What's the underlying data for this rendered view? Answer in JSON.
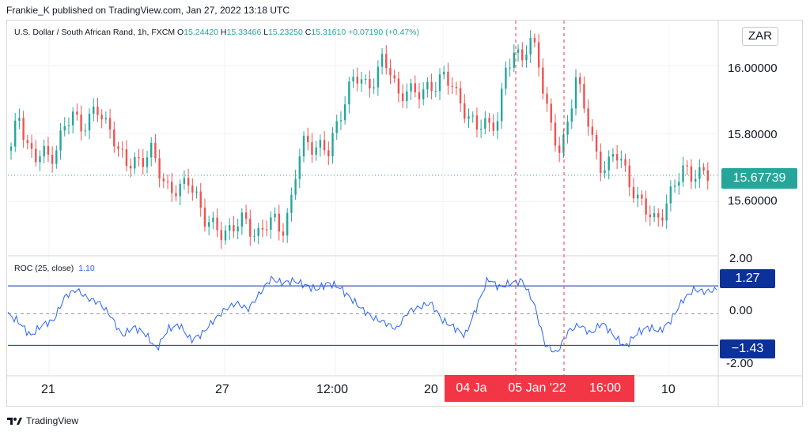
{
  "header": {
    "published": "Frankie_K published on TradingView.com, Jan 27, 2022 13:18 UTC"
  },
  "symbol": {
    "name": "U.S. Dollar / South African Rand, 1h, FXCM",
    "open_label": "O",
    "open": "15.24420",
    "high_label": "H",
    "high": "15.33466",
    "low_label": "L",
    "low": "15.23250",
    "close_label": "C",
    "close": "15.31610",
    "change": "+0.07190 (+0.47%)"
  },
  "currency_button": "ZAR",
  "price_axis": {
    "labels": [
      "16.00000",
      "15.80000",
      "15.60000"
    ],
    "current_price": "15.67739"
  },
  "roc": {
    "legend": "ROC (25, close)",
    "value": "1.10",
    "axis_labels": [
      "2.00",
      "0.00",
      "-2.00"
    ],
    "upper_level": "1.27",
    "lower_level": "−1.43"
  },
  "time_axis": {
    "labels": [
      "21",
      "27",
      "12:00",
      "20",
      "10"
    ]
  },
  "crosshair_labels": [
    "04 Ja",
    "05 Jan '22",
    "16:00"
  ],
  "footer": {
    "brand": "TradingView"
  },
  "colors": {
    "up": "#26a69a",
    "down": "#ef5350",
    "roc_line": "#2962ff",
    "level_line": "#0c3299",
    "crosshair": "#f23645"
  },
  "chart_data": [
    {
      "type": "candlestick",
      "title": "U.S. Dollar / South African Rand, 1h, FXCM",
      "ylim": [
        15.45,
        16.1
      ],
      "y_ticks": [
        16.0,
        15.8,
        15.6
      ],
      "close_path": [
        15.75,
        15.86,
        15.78,
        15.72,
        15.74,
        15.73,
        15.77,
        15.82,
        15.85,
        15.83,
        15.84,
        15.87,
        15.83,
        15.82,
        15.74,
        15.7,
        15.72,
        15.73,
        15.75,
        15.69,
        15.65,
        15.64,
        15.63,
        15.66,
        15.62,
        15.55,
        15.52,
        15.51,
        15.52,
        15.53,
        15.54,
        15.52,
        15.51,
        15.53,
        15.54,
        15.52,
        15.58,
        15.71,
        15.78,
        15.77,
        15.76,
        15.74,
        15.82,
        15.9,
        15.95,
        15.96,
        15.94,
        15.97,
        16.01,
        15.98,
        15.92,
        15.93,
        15.91,
        15.92,
        15.95,
        15.94,
        15.96,
        15.95,
        15.9,
        15.84,
        15.81,
        15.85,
        15.82,
        15.84,
        16.0,
        16.05,
        16.02,
        16.06,
        16.04,
        15.9,
        15.8,
        15.72,
        15.86,
        15.97,
        15.88,
        15.78,
        15.72,
        15.7,
        15.74,
        15.71,
        15.66,
        15.6,
        15.57,
        15.55,
        15.57,
        15.6,
        15.66,
        15.71,
        15.68,
        15.67,
        15.68
      ],
      "current_price": 15.67739
    },
    {
      "type": "line",
      "series": [
        {
          "name": "ROC (25, close)",
          "values": [
            0.0,
            -0.4,
            -1.0,
            -0.5,
            -0.3,
            0.8,
            1.1,
            0.7,
            0.5,
            -0.1,
            -1.0,
            -0.6,
            -0.9,
            -1.6,
            -0.7,
            -0.5,
            -1.2,
            -0.9,
            -0.3,
            0.2,
            0.5,
            0.2,
            0.9,
            1.6,
            1.4,
            1.5,
            1.3,
            1.1,
            1.4,
            1.2,
            0.7,
            0.2,
            -0.2,
            -0.4,
            -0.7,
            0.1,
            0.3,
            0.5,
            -0.3,
            -0.6,
            -1.0,
            0.3,
            1.6,
            1.2,
            1.4,
            1.5,
            0.5,
            -1.4,
            -1.8,
            -0.8,
            -0.5,
            -0.9,
            -0.4,
            -1.0,
            -1.5,
            -0.9,
            -0.6,
            -0.8,
            -0.3,
            0.6,
            1.1,
            1.0,
            1.1
          ]
        }
      ],
      "ylim": [
        -2.6,
        2.6
      ],
      "y_ticks": [
        2.0,
        0.0,
        -2.0
      ],
      "levels": [
        1.27,
        -1.43
      ],
      "current_value": 1.1
    }
  ]
}
